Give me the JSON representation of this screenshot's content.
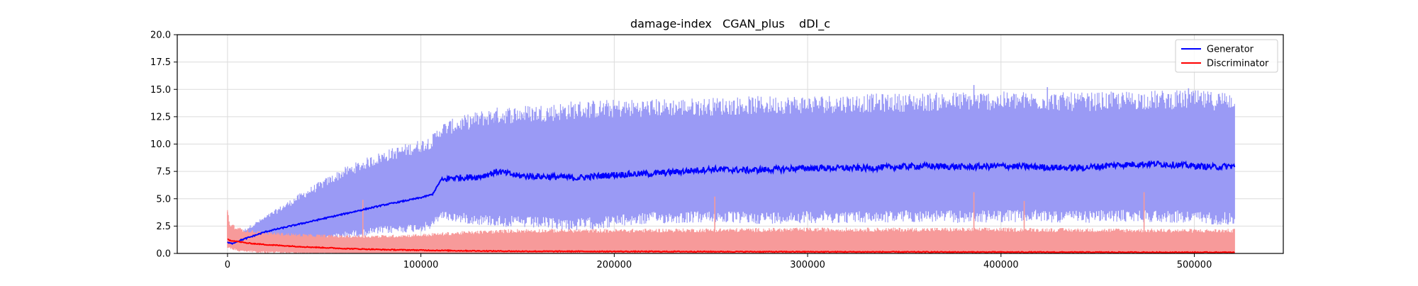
{
  "chart_data": {
    "type": "line",
    "title": "damage-index   CGAN_plus    dDI_c",
    "xlabel": "",
    "ylabel": "",
    "xlim": [
      -26000,
      546000
    ],
    "ylim": [
      0,
      20
    ],
    "x_ticks": [
      0,
      100000,
      200000,
      300000,
      400000,
      500000
    ],
    "x_tick_labels": [
      "0",
      "100000",
      "200000",
      "300000",
      "400000",
      "500000"
    ],
    "y_ticks": [
      0,
      2.5,
      5,
      7.5,
      10,
      12.5,
      15,
      17.5,
      20
    ],
    "y_tick_labels": [
      "0.0",
      "2.5",
      "5.0",
      "7.5",
      "10.0",
      "12.5",
      "15.0",
      "17.5",
      "20.0"
    ],
    "grid": true,
    "legend_position": "top-right",
    "series": [
      {
        "name": "Generator",
        "color": "#0000ff",
        "band_color": "#9a9af5",
        "x": [
          0,
          2000,
          5000,
          10000,
          20000,
          40000,
          60000,
          80000,
          100000,
          106000,
          110000,
          115000,
          130000,
          140000,
          150000,
          170000,
          180000,
          200000,
          220000,
          250000,
          270000,
          300000,
          330000,
          360000,
          383000,
          400000,
          420000,
          440000,
          460000,
          480000,
          500000,
          510000,
          521000
        ],
        "mean": [
          1.0,
          0.9,
          1.1,
          1.4,
          2.0,
          2.8,
          3.6,
          4.4,
          5.1,
          5.4,
          6.6,
          6.9,
          7.0,
          7.5,
          7.1,
          7.0,
          6.9,
          7.2,
          7.3,
          7.7,
          7.6,
          7.8,
          7.8,
          8.0,
          7.9,
          8.0,
          7.9,
          7.8,
          8.1,
          8.2,
          8.0,
          7.9,
          8.0
        ],
        "band_low": [
          0.9,
          0.8,
          0.7,
          0.6,
          0.9,
          1.3,
          2.0,
          2.5,
          2.8,
          3.0,
          4.0,
          3.8,
          3.6,
          3.5,
          3.4,
          3.3,
          3.2,
          3.5,
          3.8,
          3.9,
          3.8,
          3.9,
          3.9,
          4.0,
          3.9,
          4.0,
          4.0,
          3.9,
          4.0,
          4.0,
          3.9,
          3.8,
          3.8
        ],
        "band_high": [
          1.4,
          1.3,
          1.6,
          2.2,
          3.2,
          5.3,
          7.2,
          8.6,
          9.6,
          10.0,
          11.0,
          11.3,
          12.0,
          12.3,
          12.4,
          12.6,
          12.8,
          12.9,
          13.0,
          13.1,
          13.2,
          13.3,
          13.4,
          13.5,
          13.6,
          13.6,
          13.6,
          13.5,
          13.6,
          13.7,
          13.7,
          13.6,
          13.7
        ],
        "spikes": [
          [
            138000,
            12.8
          ],
          [
            252000,
            13.8
          ],
          [
            386000,
            15.4
          ],
          [
            424000,
            15.2
          ],
          [
            497000,
            15.1
          ]
        ]
      },
      {
        "name": "Discriminator",
        "color": "#ff0000",
        "band_color": "#f79a9a",
        "x": [
          0,
          1000,
          5000,
          10000,
          20000,
          40000,
          60000,
          80000,
          100000,
          120000,
          150000,
          200000,
          300000,
          400000,
          500000,
          521000
        ],
        "mean": [
          1.3,
          1.2,
          1.1,
          0.95,
          0.8,
          0.6,
          0.45,
          0.35,
          0.3,
          0.25,
          0.2,
          0.18,
          0.15,
          0.12,
          0.1,
          0.1
        ],
        "band_low": [
          0.8,
          0.6,
          0.4,
          0.3,
          0.2,
          0.1,
          0.05,
          0.02,
          0.0,
          0.0,
          0.0,
          0.0,
          0.0,
          0.0,
          0.0,
          0.0
        ],
        "band_high": [
          3.8,
          2.6,
          2.2,
          2.0,
          1.8,
          1.6,
          1.5,
          1.5,
          1.6,
          1.8,
          2.0,
          2.0,
          2.1,
          2.1,
          2.0,
          2.0
        ],
        "spikes": [
          [
            0,
            3.8
          ],
          [
            70000,
            4.9
          ],
          [
            252000,
            5.2
          ],
          [
            386000,
            5.6
          ],
          [
            412000,
            4.8
          ],
          [
            474000,
            5.6
          ]
        ]
      }
    ]
  }
}
